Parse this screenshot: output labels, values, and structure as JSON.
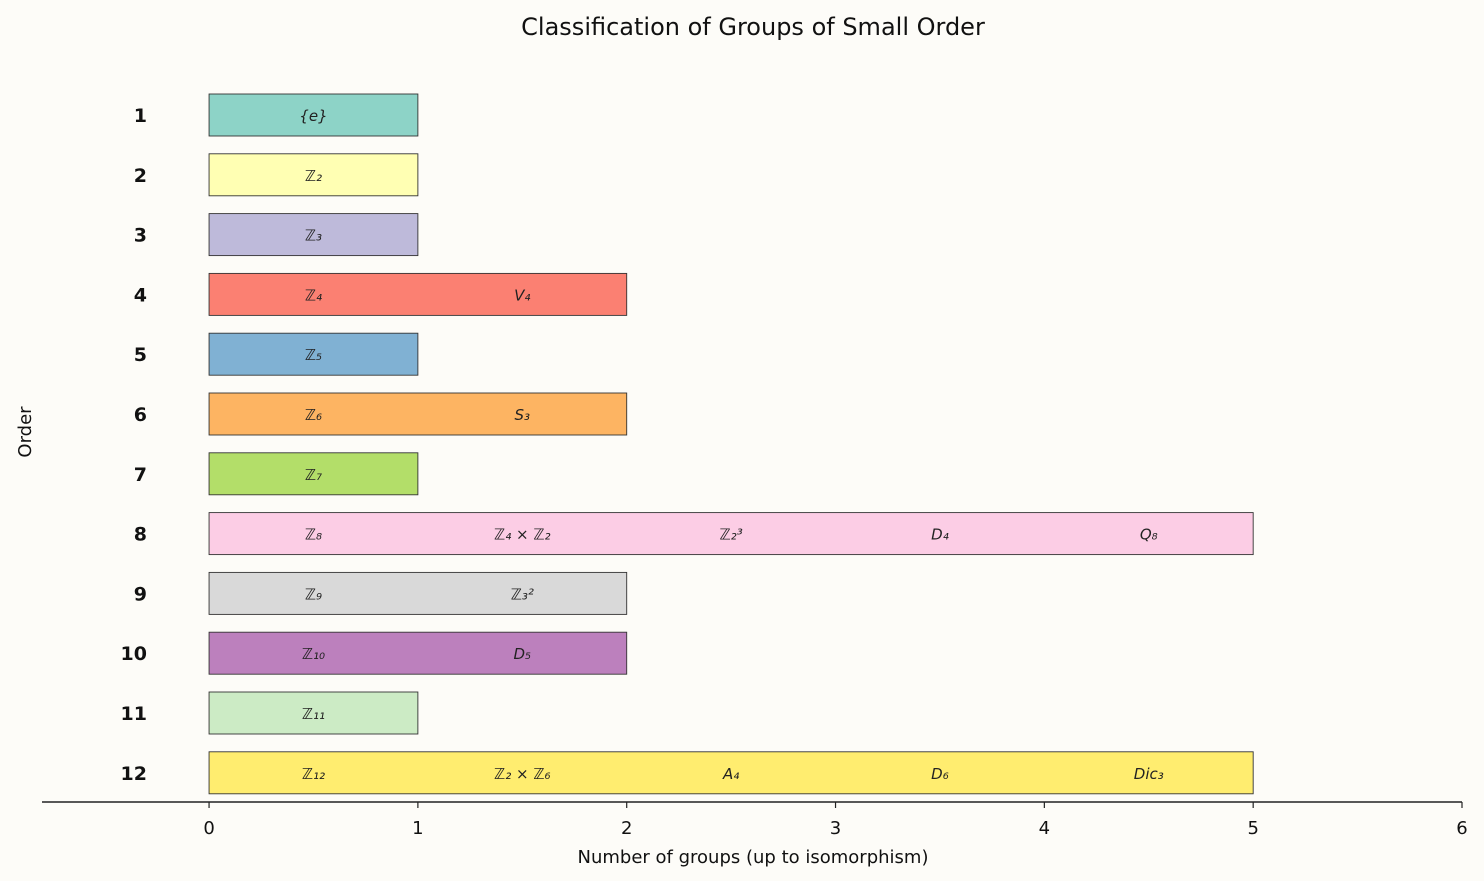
{
  "chart_data": {
    "type": "bar",
    "orientation": "horizontal",
    "stacked": true,
    "title": "Classification of Groups of Small Order",
    "xlabel": "Number of groups (up to isomorphism)",
    "ylabel": "Order",
    "xlim": [
      -0.8,
      6
    ],
    "xticks": [
      0,
      1,
      2,
      3,
      4,
      5,
      6
    ],
    "grid": false,
    "legend": "none",
    "categories": [
      "1",
      "2",
      "3",
      "4",
      "5",
      "6",
      "7",
      "8",
      "9",
      "10",
      "11",
      "12"
    ],
    "values": [
      1,
      1,
      1,
      2,
      1,
      2,
      1,
      5,
      2,
      2,
      1,
      5
    ],
    "colors": [
      "#8dd3c7",
      "#ffffb3",
      "#bebada",
      "#fb8072",
      "#80b1d3",
      "#fdb462",
      "#b3de69",
      "#fccde5",
      "#d9d9d9",
      "#bc80bd",
      "#ccebc5",
      "#ffed6f"
    ],
    "groups": [
      [
        "{e}"
      ],
      [
        "ℤ₂"
      ],
      [
        "ℤ₃"
      ],
      [
        "ℤ₄",
        "V₄"
      ],
      [
        "ℤ₅"
      ],
      [
        "ℤ₆",
        "S₃"
      ],
      [
        "ℤ₇"
      ],
      [
        "ℤ₈",
        "ℤ₄ × ℤ₂",
        "ℤ₂³",
        "D₄",
        "Q₈"
      ],
      [
        "ℤ₉",
        "ℤ₃²"
      ],
      [
        "ℤ₁₀",
        "D₅"
      ],
      [
        "ℤ₁₁"
      ],
      [
        "ℤ₁₂",
        "ℤ₂ × ℤ₆",
        "A₄",
        "D₆",
        "Dic₃"
      ]
    ]
  }
}
